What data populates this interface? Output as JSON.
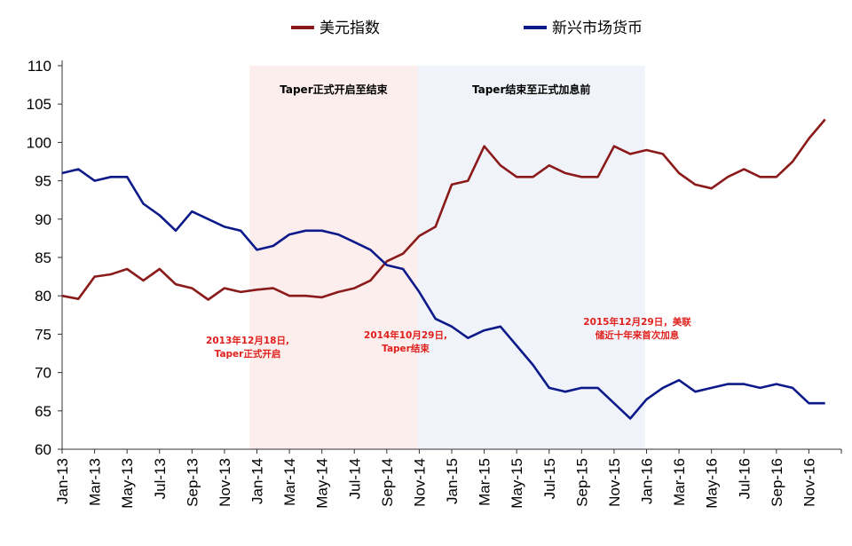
{
  "chart_data": {
    "type": "line",
    "title": "",
    "xlabel": "",
    "ylabel": "",
    "ylim": [
      60,
      110
    ],
    "yticks": [
      60,
      65,
      70,
      75,
      80,
      85,
      90,
      95,
      100,
      105,
      110
    ],
    "xlim": [
      "2013-01",
      "2016-12"
    ],
    "xticks": [
      "Jan-13",
      "Mar-13",
      "May-13",
      "Jul-13",
      "Sep-13",
      "Nov-13",
      "Jan-14",
      "Mar-14",
      "May-14",
      "Jul-14",
      "Sep-14",
      "Nov-14",
      "Jan-15",
      "Mar-15",
      "May-15",
      "Jul-15",
      "Sep-15",
      "Nov-15",
      "Jan-16",
      "Mar-16",
      "May-16",
      "Jul-16",
      "Sep-16",
      "Nov-16"
    ],
    "grid": false,
    "legend_position": "top-center",
    "colors": {
      "usd": "#8b1a1a",
      "em": "#0d1a8a",
      "band1": "#fdeeee",
      "band2": "#f1f3fa",
      "annotation": "#e0201c"
    },
    "bands": [
      {
        "label": "Taper正式开启至结束",
        "start": "2013-12-18",
        "end": "2014-10-29"
      },
      {
        "label": "Taper结束至正式加息前",
        "start": "2014-10-29",
        "end": "2015-12-29"
      }
    ],
    "annotations": [
      {
        "line1": "2013年12月18日,",
        "line2": "Taper正式开启",
        "date": "2013-12-18"
      },
      {
        "line1": "2014年10月29日,",
        "line2": "Taper结束",
        "date": "2014-10-29"
      },
      {
        "line1": "2015年12月29日，美联",
        "line2": "储近十年来首次加息",
        "date": "2015-12-29"
      }
    ],
    "series": [
      {
        "name": "美元指数",
        "x": [
          "2013-01-01",
          "2013-02-01",
          "2013-03-01",
          "2013-04-01",
          "2013-05-01",
          "2013-06-01",
          "2013-07-01",
          "2013-08-01",
          "2013-09-01",
          "2013-10-01",
          "2013-11-01",
          "2013-12-01",
          "2014-01-01",
          "2014-02-01",
          "2014-03-01",
          "2014-04-01",
          "2014-05-01",
          "2014-06-01",
          "2014-07-01",
          "2014-08-01",
          "2014-09-01",
          "2014-10-01",
          "2014-11-01",
          "2014-12-01",
          "2015-01-01",
          "2015-02-01",
          "2015-03-01",
          "2015-04-01",
          "2015-05-01",
          "2015-06-01",
          "2015-07-01",
          "2015-08-01",
          "2015-09-01",
          "2015-10-01",
          "2015-11-01",
          "2015-12-01",
          "2016-01-01",
          "2016-02-01",
          "2016-03-01",
          "2016-04-01",
          "2016-05-01",
          "2016-06-01",
          "2016-07-01",
          "2016-08-01",
          "2016-09-01",
          "2016-10-01",
          "2016-11-01",
          "2016-12-01"
        ],
        "values": [
          80,
          79.6,
          82.5,
          82.8,
          83.5,
          82,
          83.5,
          81.5,
          81,
          79.5,
          81,
          80.5,
          80.8,
          81,
          80,
          80,
          79.8,
          80.5,
          81,
          82,
          84.5,
          85.5,
          87.8,
          89,
          94.5,
          95,
          99.5,
          97,
          95.5,
          95.5,
          97,
          96,
          95.5,
          95.5,
          99.5,
          98.5,
          99,
          98.5,
          96,
          94.5,
          94,
          95.5,
          96.5,
          95.5,
          95.5,
          97.5,
          100.5,
          103
        ]
      },
      {
        "name": "新兴市场货币",
        "x": [
          "2013-01-01",
          "2013-02-01",
          "2013-03-01",
          "2013-04-01",
          "2013-05-01",
          "2013-06-01",
          "2013-07-01",
          "2013-08-01",
          "2013-09-01",
          "2013-10-01",
          "2013-11-01",
          "2013-12-01",
          "2014-01-01",
          "2014-02-01",
          "2014-03-01",
          "2014-04-01",
          "2014-05-01",
          "2014-06-01",
          "2014-07-01",
          "2014-08-01",
          "2014-09-01",
          "2014-10-01",
          "2014-11-01",
          "2014-12-01",
          "2015-01-01",
          "2015-02-01",
          "2015-03-01",
          "2015-04-01",
          "2015-05-01",
          "2015-06-01",
          "2015-07-01",
          "2015-08-01",
          "2015-09-01",
          "2015-10-01",
          "2015-11-01",
          "2015-12-01",
          "2016-01-01",
          "2016-02-01",
          "2016-03-01",
          "2016-04-01",
          "2016-05-01",
          "2016-06-01",
          "2016-07-01",
          "2016-08-01",
          "2016-09-01",
          "2016-10-01",
          "2016-11-01",
          "2016-12-01"
        ],
        "values": [
          96,
          96.5,
          95,
          95.5,
          95.5,
          92,
          90.5,
          88.5,
          91,
          90,
          89,
          88.5,
          86,
          86.5,
          88,
          88.5,
          88.5,
          88,
          87,
          86,
          84,
          83.5,
          80.5,
          77,
          76,
          74.5,
          75.5,
          76,
          73.5,
          71,
          68,
          67.5,
          68,
          68,
          66,
          64,
          66.5,
          68,
          69,
          67.5,
          68,
          68.5,
          68.5,
          68,
          68.5,
          68,
          66,
          66
        ]
      }
    ]
  }
}
